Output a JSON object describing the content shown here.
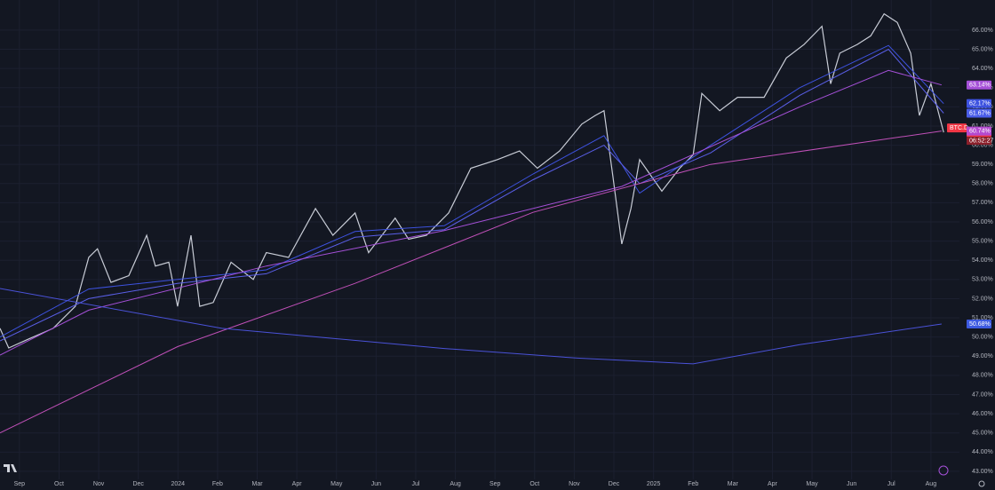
{
  "chart_data": {
    "type": "line",
    "grid": true,
    "xlim": [
      -0.49,
      23.72
    ],
    "xticks": [
      {
        "value": 0,
        "label": "Sep"
      },
      {
        "value": 1,
        "label": "Oct"
      },
      {
        "value": 2,
        "label": "Nov"
      },
      {
        "value": 3,
        "label": "Dec"
      },
      {
        "value": 4,
        "label": "2024"
      },
      {
        "value": 5,
        "label": "Feb"
      },
      {
        "value": 6,
        "label": "Mar"
      },
      {
        "value": 7,
        "label": "Apr"
      },
      {
        "value": 8,
        "label": "May"
      },
      {
        "value": 9,
        "label": "Jun"
      },
      {
        "value": 10,
        "label": "Jul"
      },
      {
        "value": 11,
        "label": "Aug"
      },
      {
        "value": 12,
        "label": "Sep"
      },
      {
        "value": 13,
        "label": "Oct"
      },
      {
        "value": 14,
        "label": "Nov"
      },
      {
        "value": 15,
        "label": "Dec"
      },
      {
        "value": 16,
        "label": "2025"
      },
      {
        "value": 17,
        "label": "Feb"
      },
      {
        "value": 18,
        "label": "Mar"
      },
      {
        "value": 19,
        "label": "Apr"
      },
      {
        "value": 20,
        "label": "May"
      },
      {
        "value": 21,
        "label": "Jun"
      },
      {
        "value": 22,
        "label": "Jul"
      },
      {
        "value": 23,
        "label": "Aug"
      }
    ],
    "ylim": [
      42.58,
      67.57
    ],
    "yticks": [
      {
        "value": 66,
        "label": "66.00%"
      },
      {
        "value": 65,
        "label": "65.00%"
      },
      {
        "value": 64,
        "label": "64.00%"
      },
      {
        "value": 63,
        "label": "63.00%"
      },
      {
        "value": 62,
        "label": "62.00%"
      },
      {
        "value": 61,
        "label": "61.00%"
      },
      {
        "value": 60,
        "label": "60.00%"
      },
      {
        "value": 59,
        "label": "59.00%"
      },
      {
        "value": 58,
        "label": "58.00%"
      },
      {
        "value": 57,
        "label": "57.00%"
      },
      {
        "value": 56,
        "label": "56.00%"
      },
      {
        "value": 55,
        "label": "55.00%"
      },
      {
        "value": 54,
        "label": "54.00%"
      },
      {
        "value": 53,
        "label": "53.00%"
      },
      {
        "value": 52,
        "label": "52.00%"
      },
      {
        "value": 51,
        "label": "51.00%"
      },
      {
        "value": 50,
        "label": "50.00%"
      },
      {
        "value": 49,
        "label": "49.00%"
      },
      {
        "value": 48,
        "label": "48.00%"
      },
      {
        "value": 47,
        "label": "47.00%"
      },
      {
        "value": 46,
        "label": "46.00%"
      },
      {
        "value": 45,
        "label": "45.00%"
      },
      {
        "value": 44,
        "label": "44.00%"
      },
      {
        "value": 43,
        "label": "43.00%"
      }
    ],
    "series": [
      {
        "color": "#c8ccd6",
        "symbol": "BTC.D",
        "countdown": "06:52:27",
        "badge": "60.67%",
        "badge_color": "#f23645",
        "x": [
          -0.49,
          -0.27,
          0.18,
          0.85,
          1.41,
          1.75,
          1.97,
          2.31,
          2.76,
          3.21,
          3.43,
          3.77,
          3.99,
          4.33,
          4.55,
          4.89,
          5.34,
          5.9,
          6.23,
          6.79,
          7.47,
          7.91,
          8.47,
          8.81,
          9.48,
          9.82,
          10.27,
          10.83,
          11.39,
          12.06,
          12.62,
          13.07,
          13.63,
          14.19,
          14.53,
          14.75,
          14.98,
          15.2,
          15.43,
          15.65,
          16.21,
          16.66,
          17.0,
          17.22,
          17.67,
          18.12,
          18.79,
          19.35,
          19.8,
          20.25,
          20.47,
          20.7,
          21.14,
          21.48,
          21.82,
          22.15,
          22.49,
          22.71,
          23.0,
          23.32
        ],
        "values": [
          50.45,
          49.43,
          49.85,
          50.45,
          51.6,
          54.15,
          54.6,
          52.85,
          53.2,
          55.3,
          53.7,
          53.9,
          51.6,
          55.3,
          51.6,
          51.8,
          53.9,
          53.0,
          54.4,
          54.15,
          56.7,
          55.3,
          56.47,
          54.4,
          56.2,
          55.1,
          55.3,
          56.47,
          58.8,
          59.25,
          59.7,
          58.8,
          59.7,
          61.1,
          61.55,
          61.8,
          58.3,
          54.85,
          56.7,
          59.25,
          57.6,
          58.8,
          59.5,
          62.7,
          61.8,
          62.5,
          62.5,
          64.55,
          65.25,
          66.2,
          63.2,
          64.8,
          65.25,
          65.7,
          66.85,
          66.4,
          64.8,
          61.55,
          63.2,
          60.67
        ]
      },
      {
        "color": "#3d52e0",
        "badge": "62.17%",
        "badge_color": "#3d52e0",
        "x": [
          -0.49,
          1.75,
          3.99,
          6.23,
          8.47,
          10.72,
          12.96,
          14.75,
          15.65,
          17.44,
          19.69,
          21.93,
          23.32
        ],
        "values": [
          50.0,
          52.5,
          53.0,
          53.5,
          55.5,
          55.8,
          58.5,
          60.5,
          57.5,
          60.0,
          63.0,
          65.2,
          62.17
        ]
      },
      {
        "color": "#5a5fe8",
        "badge": "61.67%",
        "badge_color": "#4a5de8",
        "x": [
          -0.49,
          1.75,
          3.99,
          6.23,
          8.47,
          10.72,
          12.96,
          14.75,
          15.65,
          17.44,
          19.69,
          21.93,
          23.32
        ],
        "values": [
          49.8,
          52.0,
          52.8,
          53.3,
          55.2,
          55.6,
          58.2,
          60.0,
          58.0,
          59.6,
          62.6,
          65.0,
          61.67
        ]
      },
      {
        "color": "#a550d8",
        "badge": "63.14%",
        "badge_color": "#a550d8",
        "x": [
          -0.49,
          1.75,
          6.23,
          10.72,
          15.2,
          19.69,
          21.93,
          23.27
        ],
        "values": [
          49.06,
          51.4,
          53.7,
          55.55,
          57.85,
          62.0,
          63.9,
          63.14
        ]
      },
      {
        "color": "#c050b8",
        "badge": "60.74%",
        "badge_color": "#b44ad0",
        "x": [
          -0.49,
          3.99,
          8.47,
          12.96,
          17.44,
          23.27
        ],
        "values": [
          45.0,
          49.5,
          52.8,
          56.5,
          59.0,
          60.74
        ]
      },
      {
        "color": "#4a52d8",
        "badge": "50.68%",
        "badge_color": "#3d5ae0",
        "x": [
          -0.49,
          5.11,
          10.72,
          14.08,
          17.0,
          19.69,
          23.27
        ],
        "values": [
          52.53,
          50.45,
          49.4,
          48.9,
          48.6,
          49.6,
          50.68
        ]
      }
    ]
  }
}
